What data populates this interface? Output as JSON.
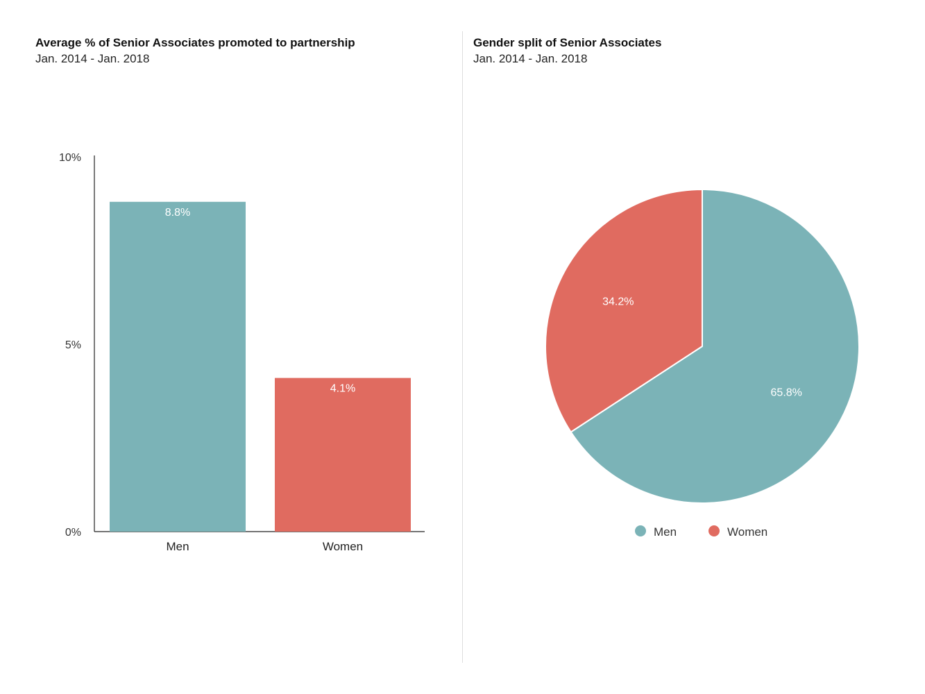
{
  "chart_data": [
    {
      "type": "bar",
      "title": "Average % of Senior Associates promoted to partnership",
      "subtitle": "Jan. 2014 - Jan. 2018",
      "categories": [
        "Men",
        "Women"
      ],
      "values": [
        8.8,
        4.1
      ],
      "value_labels": [
        "8.8%",
        "4.1%"
      ],
      "colors": [
        "#7bb3b7",
        "#e06b60"
      ],
      "yticks": [
        0,
        5,
        10
      ],
      "ytick_labels": [
        "0%",
        "5%",
        "10%"
      ],
      "ylim": [
        0,
        10
      ],
      "grid": false
    },
    {
      "type": "pie",
      "title": "Gender split of Senior Associates",
      "subtitle": "Jan. 2014 - Jan. 2018",
      "labels": [
        "Men",
        "Women"
      ],
      "values": [
        65.8,
        34.2
      ],
      "value_labels": [
        "65.8%",
        "34.2%"
      ],
      "colors": [
        "#7bb3b7",
        "#e06b60"
      ],
      "legend": {
        "position": "bottom",
        "items": [
          "Men",
          "Women"
        ]
      }
    }
  ]
}
